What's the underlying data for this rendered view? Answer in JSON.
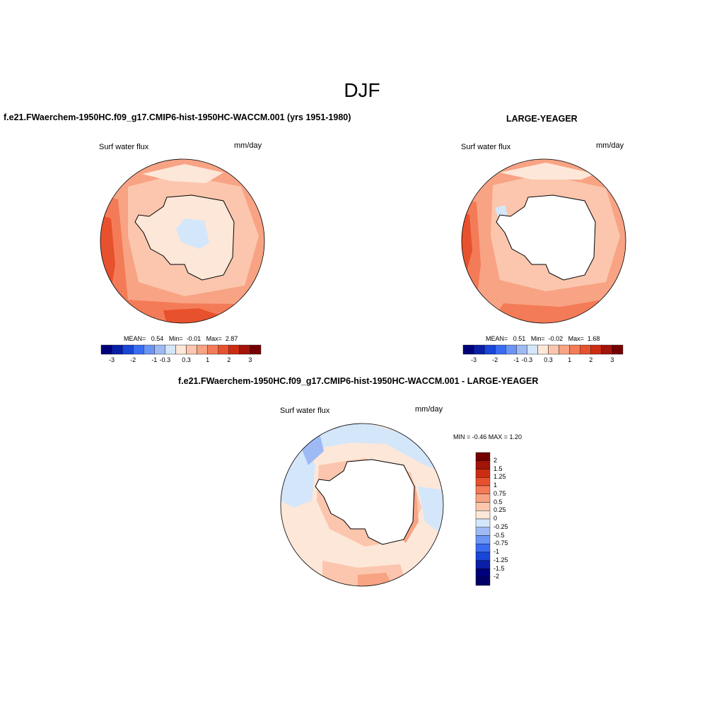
{
  "figure": {
    "title": "DJF"
  },
  "panels": [
    {
      "id": "model",
      "title": "f.e21.FWaerchem-1950HC.f09_g17.CMIP6-hist-1950HC-WACCM.001 (yrs 1951-1980)",
      "left_label": "Surf water flux",
      "right_label": "mm/day",
      "stats": {
        "mean_label": "MEAN=",
        "mean": "0.54",
        "min_label": "Min=",
        "min": "-0.01",
        "max_label": "Max=",
        "max": "2.87"
      },
      "colorbar": {
        "tick_labels": [
          "-3",
          "-2",
          "-1",
          "-0.3",
          "0.3",
          "1",
          "2",
          "3"
        ]
      }
    },
    {
      "id": "obs",
      "title": "LARGE-YEAGER",
      "left_label": "Surf water flux",
      "right_label": "mm/day",
      "stats": {
        "mean_label": "MEAN=",
        "mean": "0.51",
        "min_label": "Min=",
        "min": "-0.02",
        "max_label": "Max=",
        "max": "1.68"
      },
      "colorbar": {
        "tick_labels": [
          "-3",
          "-2",
          "-1",
          "-0.3",
          "0.3",
          "1",
          "2",
          "3"
        ]
      }
    },
    {
      "id": "diff",
      "title": "f.e21.FWaerchem-1950HC.f09_g17.CMIP6-hist-1950HC-WACCM.001 - LARGE-YEAGER",
      "left_label": "Surf water flux",
      "right_label": "mm/day",
      "stats_text": "MIN =  -0.46 MAX =   1.20",
      "colorbar": {
        "tick_labels": [
          "2",
          "1.5",
          "1.25",
          "1",
          "0.75",
          "0.5",
          "0.25",
          "0",
          "-0.25",
          "-0.5",
          "-0.75",
          "-1",
          "-1.25",
          "-1.5",
          "-2"
        ]
      }
    }
  ],
  "palette": {
    "blue_to_red": [
      "#00007a",
      "#0a1fa8",
      "#1846d8",
      "#3a6cf0",
      "#6b95f5",
      "#9ebaf5",
      "#d4e6fa",
      "#fde7d9",
      "#fbc6ad",
      "#f8a384",
      "#f47b57",
      "#e8512d",
      "#cc2d12",
      "#a3140a",
      "#750000"
    ]
  },
  "map_colors": {
    "ocean_low": "#fde7d9",
    "ocean_mid": "#fbc6ad",
    "ocean_high": "#f8a384",
    "ocean_higher": "#f47b57",
    "ocean_max": "#e8512d",
    "neg_light": "#d4e6fa",
    "neg_mid": "#9ebaf5",
    "land_masked": "#ffffff"
  }
}
